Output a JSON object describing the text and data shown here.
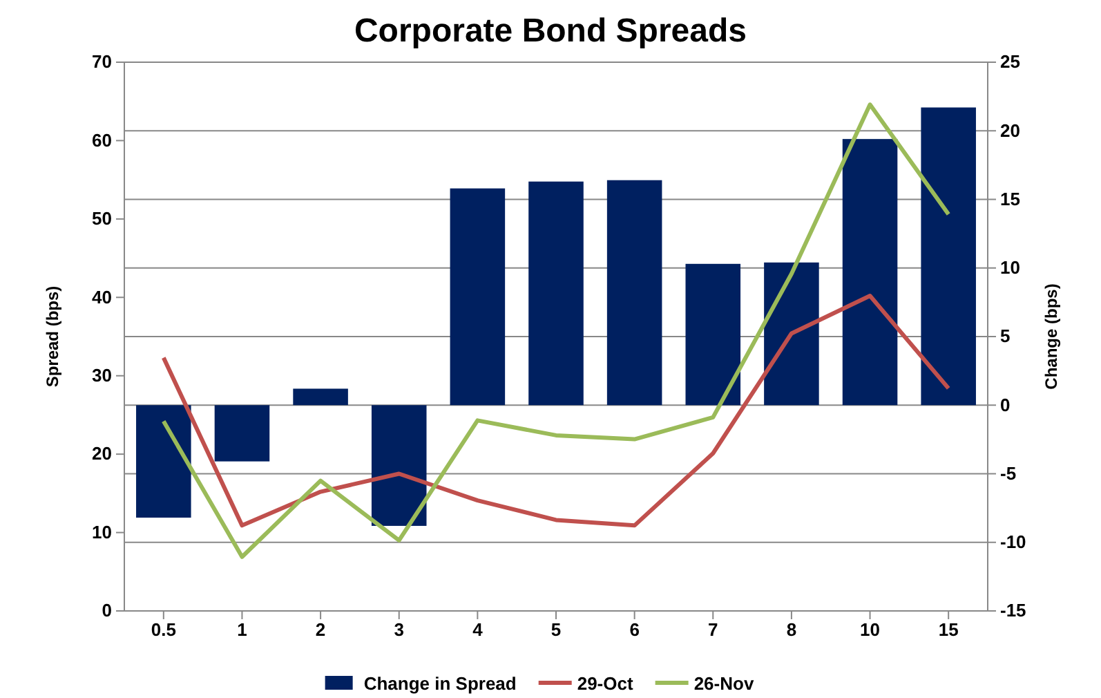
{
  "chart_data": {
    "type": "bar",
    "title": "Corporate Bond Spreads",
    "ylabel": "Spread (bps)",
    "y2label": "Change (bps)",
    "categories": [
      "0.5",
      "1",
      "2",
      "3",
      "4",
      "5",
      "6",
      "7",
      "8",
      "10",
      "15"
    ],
    "series": [
      {
        "name": "Change in Spread",
        "axis": "y2",
        "color": "#002060",
        "values": [
          -8.2,
          -4.1,
          1.2,
          -8.8,
          15.8,
          16.3,
          16.4,
          10.3,
          10.4,
          19.4,
          21.7
        ]
      },
      {
        "name": "29-Oct",
        "type": "line",
        "color": "#c0504d",
        "values": [
          32.3,
          10.9,
          15.2,
          17.5,
          14.1,
          11.6,
          10.9,
          20.1,
          35.4,
          40.2,
          28.4
        ]
      },
      {
        "name": "26-Nov",
        "type": "line",
        "color": "#9bbb59",
        "values": [
          24.2,
          6.9,
          16.6,
          9.0,
          24.3,
          22.4,
          21.9,
          24.7,
          43.0,
          64.6,
          50.6
        ]
      }
    ],
    "ylim": [
      0,
      70
    ],
    "yticks": [
      0,
      10,
      20,
      30,
      40,
      50,
      60,
      70
    ],
    "y2lim": [
      -15,
      25
    ],
    "y2ticks": [
      -15,
      -10,
      -5,
      0,
      5,
      10,
      15,
      20,
      25
    ],
    "grid": true,
    "legend": "bottom",
    "marker": "none",
    "line_style": "solid"
  }
}
